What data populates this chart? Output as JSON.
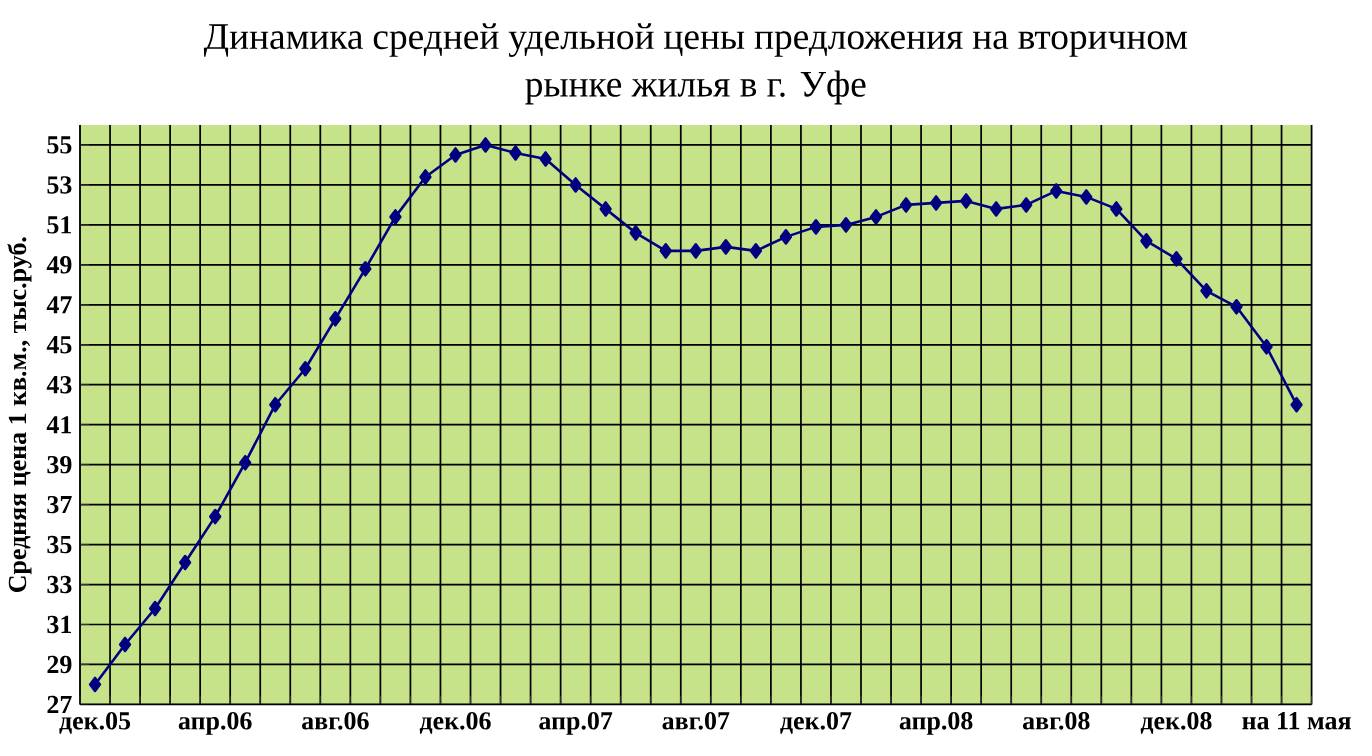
{
  "chart_data": {
    "type": "line",
    "title": "Динамика средней удельной цены предложения на вторичном рынке жилья в г. Уфе",
    "ylabel": "Средняя цена 1 кв.м., тыс.руб.",
    "categories": [
      "дек.05",
      null,
      null,
      null,
      "апр.06",
      null,
      null,
      null,
      "авг.06",
      null,
      null,
      null,
      "дек.06",
      null,
      null,
      null,
      "апр.07",
      null,
      null,
      null,
      "авг.07",
      null,
      null,
      null,
      "дек.07",
      null,
      null,
      null,
      "апр.08",
      null,
      null,
      null,
      "авг.08",
      null,
      null,
      null,
      "дек.08",
      null,
      null,
      null,
      "на 11 мая"
    ],
    "series": [
      {
        "color": "#000080",
        "values": [
          28.0,
          30.0,
          31.8,
          34.1,
          36.4,
          39.1,
          42.0,
          43.8,
          46.3,
          48.8,
          51.4,
          53.4,
          54.5,
          55.0,
          54.6,
          54.3,
          53.0,
          51.8,
          50.6,
          49.7,
          49.7,
          49.9,
          49.7,
          50.4,
          50.9,
          51.0,
          51.4,
          52.0,
          52.1,
          52.2,
          51.8,
          52.0,
          52.7,
          52.4,
          51.8,
          50.2,
          49.3,
          47.7,
          46.9,
          44.9,
          42.0
        ]
      }
    ],
    "ylim": [
      27,
      56
    ],
    "yticks": [
      27,
      29,
      31,
      33,
      35,
      37,
      39,
      41,
      43,
      45,
      47,
      49,
      51,
      53,
      55
    ],
    "grid": true,
    "marker": "diamond",
    "line_style": "solid"
  }
}
